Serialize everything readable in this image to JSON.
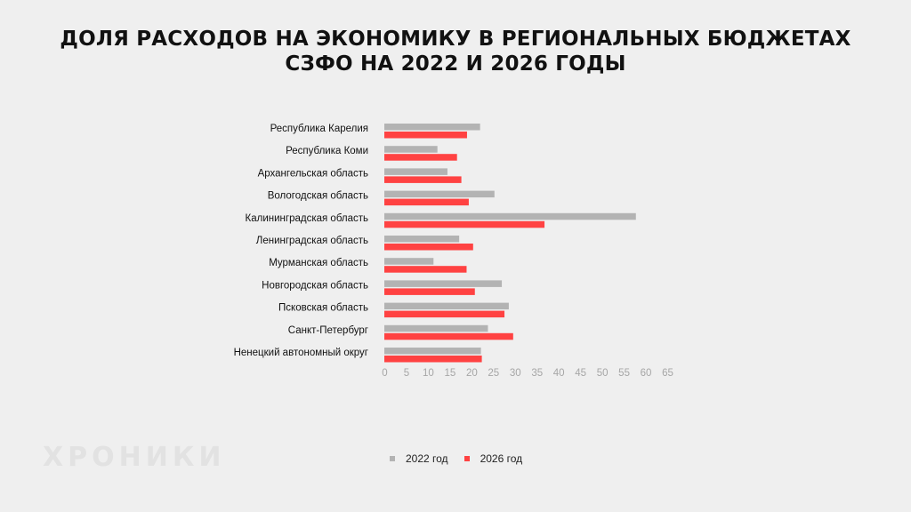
{
  "title": {
    "line1": "ДОЛЯ РАСХОДОВ НА ЭКОНОМИКУ В РЕГИОНАЛЬНЫХ БЮДЖЕТАХ",
    "line2": "СЗФО НА 2022 И 2026 ГОДЫ"
  },
  "brand": "ХРОНИКИ",
  "colors": {
    "series_2022": "#b3b3b3",
    "series_2026": "#ff4242",
    "background": "#efefef",
    "text": "#111111",
    "tick_text": "#a6a6a6"
  },
  "chart_data": {
    "type": "bar",
    "orientation": "horizontal",
    "title": "ДОЛЯ РАСХОДОВ НА ЭКОНОМИКУ В РЕГИОНАЛЬНЫХ БЮДЖЕТАХ СЗФО НА 2022 И 2026 ГОДЫ",
    "categories": [
      "Республика Карелия",
      "Республика Коми",
      "Архангельская область",
      "Вологодская область",
      "Калининградская область",
      "Ленинградская область",
      "Мурманская область",
      "Новгородская область",
      "Псковская область",
      "Санкт-Петербург",
      "Ненецкий автономный округ"
    ],
    "series": [
      {
        "name": "2022 год",
        "values": [
          22,
          12.2,
          14.5,
          25.3,
          57.8,
          17.2,
          11.3,
          27,
          28.6,
          23.8,
          22.2
        ]
      },
      {
        "name": "2026 год",
        "values": [
          19,
          16.7,
          17.7,
          19.4,
          36.8,
          20.4,
          18.9,
          20.8,
          27.6,
          29.6,
          22.4
        ]
      }
    ],
    "xticks": [
      0,
      5,
      10,
      15,
      20,
      25,
      30,
      35,
      40,
      45,
      50,
      55,
      60,
      65
    ],
    "xlim": [
      0,
      65
    ],
    "xlabel": "",
    "ylabel": "",
    "grid": false,
    "legend_position": "bottom"
  }
}
